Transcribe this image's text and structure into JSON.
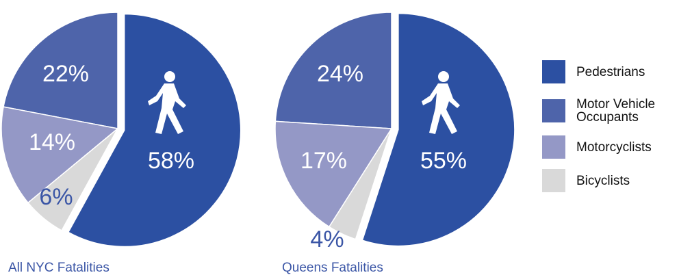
{
  "chart_data": [
    {
      "type": "pie",
      "title": "All NYC Fatalities",
      "categories": [
        "Pedestrians",
        "Motor Vehicle Occupants",
        "Motorcyclists",
        "Bicyclists"
      ],
      "values": [
        58,
        22,
        14,
        6
      ],
      "value_labels": [
        "58%",
        "22%",
        "14%",
        "6%"
      ],
      "colors": [
        "#2c50a2",
        "#4e64aa",
        "#9498c6",
        "#d9d9d9"
      ],
      "exploded": "Pedestrians"
    },
    {
      "type": "pie",
      "title": "Queens Fatalities",
      "categories": [
        "Pedestrians",
        "Motor Vehicle Occupants",
        "Motorcyclists",
        "Bicyclists"
      ],
      "values": [
        55,
        24,
        17,
        4
      ],
      "value_labels": [
        "55%",
        "24%",
        "17%",
        "4%"
      ],
      "colors": [
        "#2c50a2",
        "#4e64aa",
        "#9498c6",
        "#d9d9d9"
      ],
      "exploded": "Pedestrians"
    }
  ]
}
